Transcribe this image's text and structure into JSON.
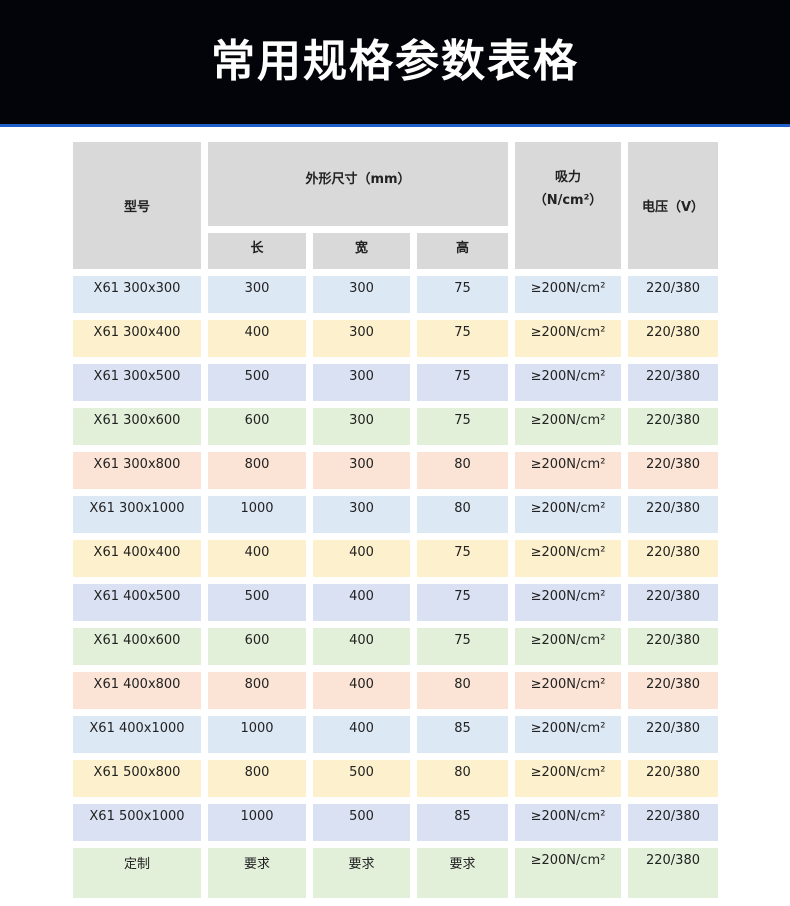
{
  "title": "常用规格参数表格",
  "header": {
    "model": "型号",
    "dimensions": "外形尺寸（mm）",
    "length": "长",
    "width": "宽",
    "height": "高",
    "suction": "吸力",
    "suction_unit": "（N/cm²）",
    "voltage": "电压（V）"
  },
  "row_colors": [
    "#dde8f5",
    "#fdf0cc",
    "#d9e1f2",
    "#e2efd9",
    "#fbe4d5"
  ],
  "rows": [
    [
      "X61 300x300",
      "300",
      "300",
      "75",
      "≥200N/cm²",
      "220/380"
    ],
    [
      "X61 300x400",
      "400",
      "300",
      "75",
      "≥200N/cm²",
      "220/380"
    ],
    [
      "X61 300x500",
      "500",
      "300",
      "75",
      "≥200N/cm²",
      "220/380"
    ],
    [
      "X61 300x600",
      "600",
      "300",
      "75",
      "≥200N/cm²",
      "220/380"
    ],
    [
      "X61 300x800",
      "800",
      "300",
      "80",
      "≥200N/cm²",
      "220/380"
    ],
    [
      "X61 300x1000",
      "1000",
      "300",
      "80",
      "≥200N/cm²",
      "220/380"
    ],
    [
      "X61 400x400",
      "400",
      "400",
      "75",
      "≥200N/cm²",
      "220/380"
    ],
    [
      "X61 400x500",
      "500",
      "400",
      "75",
      "≥200N/cm²",
      "220/380"
    ],
    [
      "X61 400x600",
      "600",
      "400",
      "75",
      "≥200N/cm²",
      "220/380"
    ],
    [
      "X61 400x800",
      "800",
      "400",
      "80",
      "≥200N/cm²",
      "220/380"
    ],
    [
      "X61 400x1000",
      "1000",
      "400",
      "85",
      "≥200N/cm²",
      "220/380"
    ],
    [
      "X61 500x800",
      "800",
      "500",
      "80",
      "≥200N/cm²",
      "220/380"
    ],
    [
      "X61 500x1000",
      "1000",
      "500",
      "85",
      "≥200N/cm²",
      "220/380"
    ],
    [
      "定制",
      "要求",
      "要求",
      "要求",
      "≥200N/cm²",
      "220/380"
    ]
  ]
}
